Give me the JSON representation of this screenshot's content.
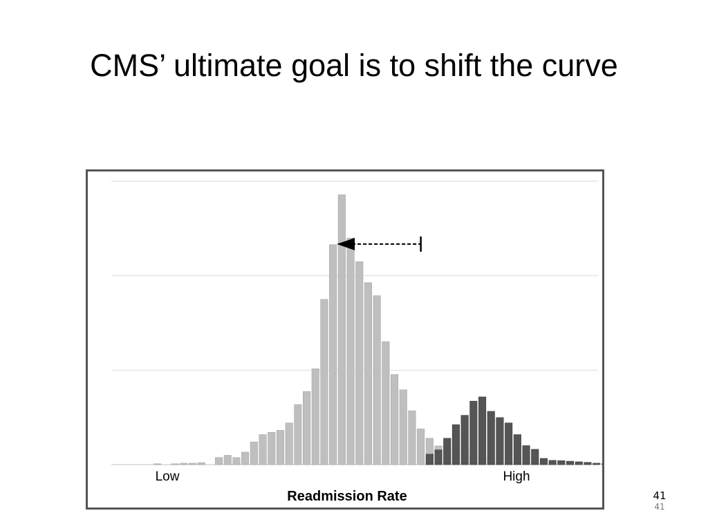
{
  "slide": {
    "title": "CMS’ ultimate goal is to shift the curve",
    "page_number": "41",
    "page_number_footer": "41"
  },
  "chart_data": {
    "type": "bar",
    "xlabel": "Readmission Rate",
    "x_tick_labels": [
      "Low",
      "High"
    ],
    "ylim": [
      0,
      100
    ],
    "grid": true,
    "gridlines_y": [
      0,
      33.3,
      66.7,
      100
    ],
    "bin_count": 56,
    "series": [
      {
        "color": "#bfbfbf",
        "values": [
          0,
          0,
          0.3,
          0,
          0.3,
          0.5,
          0.5,
          0.7,
          0,
          2.5,
          3.3,
          2.5,
          4.4,
          8,
          10.6,
          11.4,
          12.1,
          14.7,
          21.2,
          25.8,
          33.8,
          58.3,
          77.6,
          95.2,
          79.9,
          71.6,
          64.2,
          59.6,
          43.4,
          31.8,
          26.4,
          19,
          12.6,
          9.3,
          6.6,
          6.4,
          6.4,
          5.9,
          3.4,
          2.8,
          2,
          1.5,
          1,
          0.8,
          0.5,
          0.5,
          0.5,
          0.3,
          0.2,
          0.2,
          0,
          0,
          0,
          0,
          0,
          0
        ]
      },
      {
        "color": "#555555",
        "values": [
          0,
          0,
          0,
          0,
          0,
          0,
          0,
          0,
          0,
          0,
          0,
          0,
          0,
          0,
          0,
          0,
          0,
          0,
          0,
          0,
          0,
          0,
          0,
          0,
          0,
          0,
          0,
          0,
          0,
          0,
          0,
          0,
          0,
          3.7,
          5.2,
          9.3,
          14.1,
          17.4,
          22.4,
          23.9,
          18.8,
          16.6,
          14.7,
          10.6,
          6.7,
          5.4,
          2.2,
          1.5,
          1.4,
          1.2,
          1,
          0.8,
          0.5,
          0.3,
          0.2,
          0.2
        ]
      }
    ],
    "annotations": [
      {
        "type": "arrow",
        "direction": "left",
        "from_bin": 32,
        "to_bin": 23,
        "y": 77.8,
        "style": "dashed"
      }
    ],
    "colors": {
      "light_bars": "#bfbfbf",
      "dark_bars": "#555555",
      "grid": "#e6e6e6",
      "frame": "#555555"
    }
  }
}
